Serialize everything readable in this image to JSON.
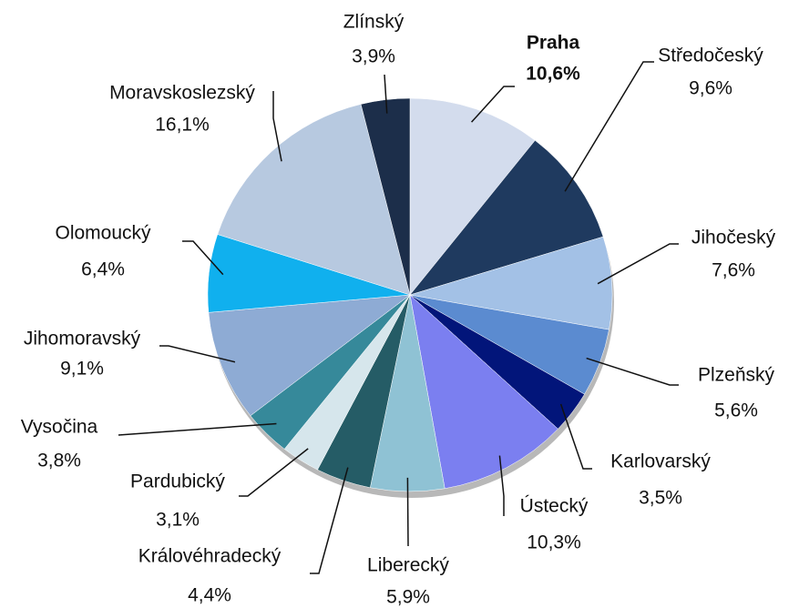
{
  "chart_data": {
    "type": "pie",
    "categories": [
      "Praha",
      "Středočeský",
      "Jihočeský",
      "Plzeňský",
      "Karlovarský",
      "Ústecký",
      "Liberecký",
      "Královéhradecký",
      "Pardubický",
      "Vysočina",
      "Jihomoravský",
      "Olomoucký",
      "Moravskoslezský",
      "Zlínský"
    ],
    "values": [
      10.6,
      9.6,
      7.6,
      5.6,
      3.5,
      10.3,
      5.9,
      4.4,
      3.1,
      3.8,
      9.1,
      6.4,
      16.1,
      3.9
    ],
    "value_labels": [
      "10,6%",
      "9,6%",
      "7,6%",
      "5,6%",
      "3,5%",
      "10,3%",
      "5,9%",
      "4,4%",
      "3,1%",
      "3,8%",
      "9,1%",
      "6,4%",
      "16,1%",
      "3,9%"
    ],
    "colors": [
      "#d3dced",
      "#1f3a5f",
      "#a3c1e6",
      "#5b8bd0",
      "#02157a",
      "#7b7ff0",
      "#8fc2d4",
      "#255c66",
      "#d6e6ec",
      "#36899a",
      "#8eabd4",
      "#10b0ee",
      "#b7c9e0",
      "#1c2e4a"
    ]
  }
}
